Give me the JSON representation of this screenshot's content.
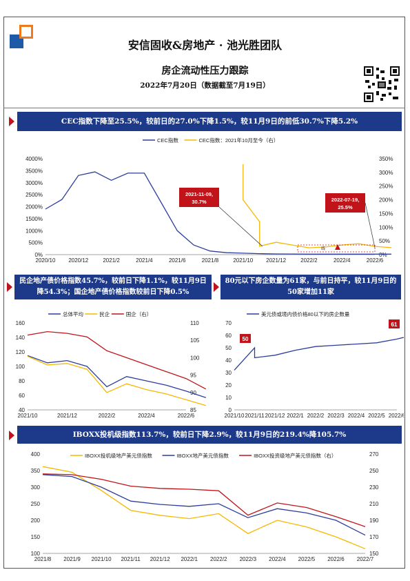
{
  "header": {
    "title": "安信固收&房地产 · 池光胜团队",
    "subtitle": "房企流动性压力跟踪",
    "date": "2022年7月20日（数据截至7月19日）"
  },
  "banners": {
    "b1": "CEC指数下降至25.5%，较前日的27.0%下降1.5%，较11月9日的前低30.7%下降5.2%",
    "b2": "民企地产债价格指数45.7%，较前日下降1.1%，较11月9日降54.3%；国企地产债价格指数较前日下降0.5%",
    "b3": "80元以下房企数量为61家，与前日持平，较11月9日的50家增加11家",
    "b4": "IBOXX投机级指数113.7%，较前日下降2.9%，较11月9日的219.4%降105.7%"
  },
  "colors": {
    "banner": "#1d3a8a",
    "accent": "#c0141a",
    "blue": "#2c3d9c",
    "yellow": "#f5b800",
    "red": "#c0141a"
  },
  "chart_data": [
    {
      "type": "line",
      "legend": [
        "CEC指数",
        "CEC指数：2021年10月至今（右）"
      ],
      "x_ticks": [
        "2020/10",
        "2020/12",
        "2021/2",
        "2021/4",
        "2021/6",
        "2021/8",
        "2021/10",
        "2021/12",
        "2022/2",
        "2022/4",
        "2022/6"
      ],
      "y_ticks_left": [
        "0%",
        "500%",
        "1000%",
        "1500%",
        "2000%",
        "2500%",
        "3000%",
        "3500%",
        "4000%"
      ],
      "y_ticks_right": [
        "0%",
        "50%",
        "100%",
        "150%",
        "200%",
        "250%",
        "300%",
        "350%"
      ],
      "ylim_left": [
        0,
        4000
      ],
      "ylim_right": [
        0,
        350
      ],
      "annotations": [
        {
          "label": "2021-11-09,",
          "value": "30.7%"
        },
        {
          "label": "2022-07-19,",
          "value": "25.5%"
        },
        {
          "label": "线"
        }
      ],
      "series": [
        {
          "name": "CEC指数",
          "axis": "left",
          "x": [
            "2020/10",
            "2020/11",
            "2020/12",
            "2021/1",
            "2021/2",
            "2021/3",
            "2021/4",
            "2021/5",
            "2021/6",
            "2021/7",
            "2021/8",
            "2021/9",
            "2021/10",
            "2021/11",
            "2021/12",
            "2022/1",
            "2022/2",
            "2022/3",
            "2022/4",
            "2022/5",
            "2022/6",
            "2022/7"
          ],
          "values": [
            1900,
            2300,
            3300,
            3450,
            3100,
            3400,
            3400,
            2200,
            1000,
            400,
            150,
            80,
            60,
            40,
            30,
            25,
            20,
            20,
            20,
            20,
            20,
            20
          ]
        },
        {
          "name": "CEC指数：2021年10月至今（右）",
          "axis": "right",
          "x": [
            "2021/10",
            "2021/10",
            "2021/11",
            "2021/11",
            "2021/12",
            "2022/1",
            "2022/2",
            "2022/3",
            "2022/4",
            "2022/5",
            "2022/6",
            "2022/7"
          ],
          "values": [
            330,
            200,
            120,
            30.7,
            45,
            35,
            25,
            28,
            35,
            40,
            30,
            25.5
          ]
        }
      ]
    },
    {
      "type": "line",
      "legend": [
        "总体平均",
        "民企",
        "国企（右）"
      ],
      "x_ticks": [
        "2021/10",
        "2021/12",
        "2022/2",
        "2022/4",
        "2022/6"
      ],
      "y_ticks_left": [
        "40",
        "60",
        "80",
        "100",
        "120",
        "140",
        "160"
      ],
      "y_ticks_right": [
        "85",
        "90",
        "95",
        "100",
        "105",
        "110"
      ],
      "ylim_left": [
        40,
        160
      ],
      "ylim_right": [
        85,
        110
      ],
      "series": [
        {
          "name": "总体平均",
          "axis": "left",
          "x": [
            "2021/10",
            "2021/11",
            "2021/12",
            "2022/1",
            "2022/2",
            "2022/3",
            "2022/4",
            "2022/5",
            "2022/6",
            "2022/7"
          ],
          "values": [
            115,
            105,
            108,
            100,
            72,
            86,
            80,
            74,
            66,
            57
          ]
        },
        {
          "name": "民企",
          "axis": "left",
          "x": [
            "2021/10",
            "2021/11",
            "2021/12",
            "2022/1",
            "2022/2",
            "2022/3",
            "2022/4",
            "2022/5",
            "2022/6",
            "2022/7"
          ],
          "values": [
            114,
            102,
            104,
            96,
            64,
            76,
            68,
            62,
            54,
            46
          ]
        },
        {
          "name": "国企（右）",
          "axis": "right",
          "x": [
            "2021/10",
            "2021/11",
            "2021/12",
            "2022/1",
            "2022/2",
            "2022/3",
            "2022/4",
            "2022/5",
            "2022/6",
            "2022/7"
          ],
          "values": [
            106.5,
            107.5,
            107,
            106,
            102,
            100,
            98,
            96,
            94,
            91
          ]
        }
      ]
    },
    {
      "type": "line",
      "legend": [
        "美元债或境内债价格80以下的房企数量"
      ],
      "x_ticks": [
        "2021/10",
        "2021/11",
        "2021/12",
        "2022/1",
        "2022/2",
        "2022/3",
        "2022/4",
        "2022/5",
        "2022/6"
      ],
      "y_ticks": [
        "0",
        "10",
        "20",
        "30",
        "40",
        "50",
        "60",
        "70"
      ],
      "ylim": [
        0,
        70
      ],
      "annotations": [
        {
          "value": "50"
        },
        {
          "value": "61"
        }
      ],
      "series": [
        {
          "name": "美元债或境内债价格80以下的房企数量",
          "x": [
            "2021/10",
            "2021/11",
            "2021/11",
            "2021/12",
            "2022/1",
            "2022/2",
            "2022/3",
            "2022/4",
            "2022/5",
            "2022/6",
            "2022/7"
          ],
          "values": [
            32,
            50,
            42,
            44,
            48,
            51,
            52,
            53,
            54,
            57,
            61
          ]
        }
      ]
    },
    {
      "type": "line",
      "legend": [
        "IBOXX投机级地产美元债指数",
        "IBOXX地产美元债指数",
        "IBOXX投资级地产美元债指数（右）"
      ],
      "x_ticks": [
        "2021/8",
        "2021/9",
        "2021/10",
        "2021/11",
        "2021/12",
        "2022/1",
        "2022/2",
        "2022/3",
        "2022/4",
        "2022/5",
        "2022/6",
        "2022/7"
      ],
      "y_ticks_left": [
        "100",
        "150",
        "200",
        "250",
        "300",
        "350",
        "400"
      ],
      "y_ticks_right": [
        "150",
        "170",
        "190",
        "210",
        "230",
        "250",
        "270"
      ],
      "ylim_left": [
        100,
        400
      ],
      "ylim_right": [
        150,
        280
      ],
      "series": [
        {
          "name": "IBOXX投机级地产美元债指数",
          "axis": "left",
          "x": [
            "2021/8",
            "2021/9",
            "2021/10",
            "2021/11",
            "2021/12",
            "2022/1",
            "2022/2",
            "2022/3",
            "2022/4",
            "2022/5",
            "2022/6",
            "2022/7"
          ],
          "values": [
            362,
            345,
            290,
            230,
            215,
            205,
            220,
            160,
            200,
            180,
            150,
            114
          ]
        },
        {
          "name": "IBOXX地产美元债指数",
          "axis": "left",
          "x": [
            "2021/8",
            "2021/9",
            "2021/10",
            "2021/11",
            "2021/12",
            "2022/1",
            "2022/2",
            "2022/3",
            "2022/4",
            "2022/5",
            "2022/6",
            "2022/7"
          ],
          "values": [
            338,
            332,
            300,
            258,
            248,
            242,
            250,
            208,
            235,
            222,
            200,
            155
          ]
        },
        {
          "name": "IBOXX投资级地产美元债指数（右）",
          "axis": "right",
          "x": [
            "2021/8",
            "2021/9",
            "2021/10",
            "2021/11",
            "2021/12",
            "2022/1",
            "2022/2",
            "2022/3",
            "2022/4",
            "2022/5",
            "2022/6",
            "2022/7"
          ],
          "values": [
            254,
            253,
            247,
            238,
            235,
            234,
            232,
            200,
            216,
            210,
            198,
            185
          ]
        }
      ]
    }
  ]
}
